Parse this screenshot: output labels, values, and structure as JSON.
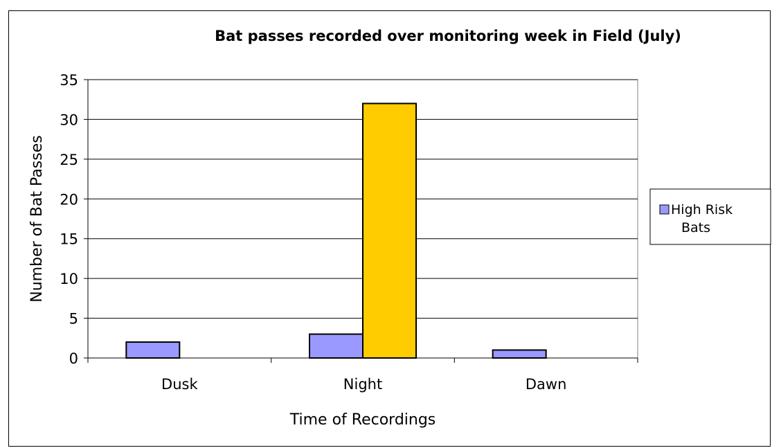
{
  "caption_fragment": "e ·   ·   · ·   ·   ·   ·  ",
  "chart_data": {
    "type": "bar",
    "title": "Bat passes recorded over monitoring week in Field (July)",
    "xlabel": "Time of Recordings",
    "ylabel": "Number of Bat Passes",
    "categories": [
      "Dusk",
      "Night",
      "Dawn"
    ],
    "ylim": [
      0,
      35
    ],
    "yticks": [
      "0",
      "5",
      "10",
      "15",
      "20",
      "25",
      "30",
      "35"
    ],
    "grid": true,
    "legend_position": "right",
    "series": [
      {
        "name": "High Risk Bats",
        "values": [
          2,
          3,
          1
        ],
        "color": "#9999ff"
      },
      {
        "values": [
          0,
          32,
          0
        ],
        "color": "#ffcc00"
      }
    ]
  }
}
